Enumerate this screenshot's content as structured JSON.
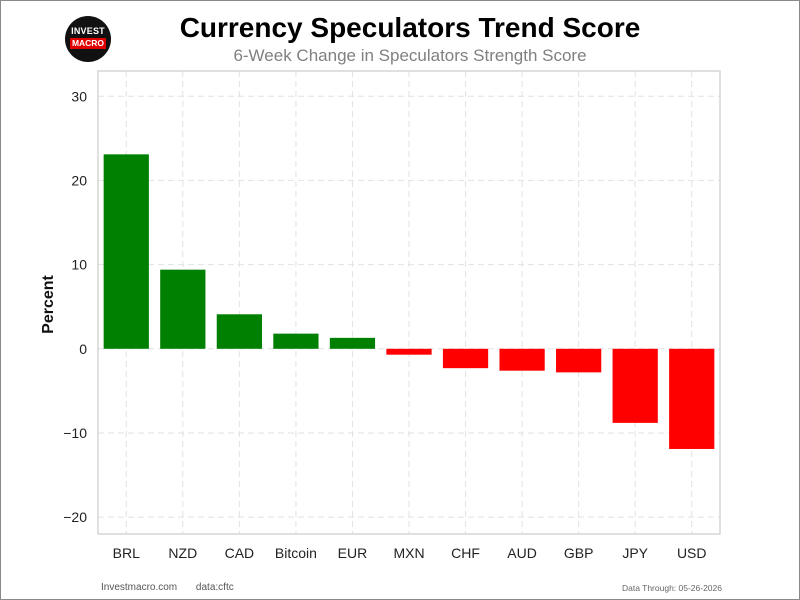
{
  "logo": {
    "line1": "INVEST",
    "line2": "MACRO"
  },
  "chart_data": {
    "type": "bar",
    "title": "Currency Speculators Trend Score",
    "subtitle": "6-Week Change in Speculators Strength Score",
    "xlabel": "",
    "ylabel": "Percent",
    "ylim": [
      -22,
      33
    ],
    "yticks": [
      -20,
      -10,
      0,
      10,
      20,
      30
    ],
    "ytick_labels": [
      "−20",
      "−10",
      "0",
      "10",
      "20",
      "30"
    ],
    "grid": true,
    "categories": [
      "BRL",
      "NZD",
      "CAD",
      "Bitcoin",
      "EUR",
      "MXN",
      "CHF",
      "AUD",
      "GBP",
      "JPY",
      "USD"
    ],
    "values": [
      23.1,
      9.4,
      4.1,
      1.8,
      1.3,
      -0.7,
      -2.3,
      -2.6,
      -2.8,
      -8.8,
      -11.9
    ],
    "colors": {
      "positive": "#008000",
      "negative": "#ff0000"
    }
  },
  "footer": {
    "site": "Investmacro.com",
    "source": "data:cftc",
    "data_through": "Data Through: 05-26-2026"
  }
}
